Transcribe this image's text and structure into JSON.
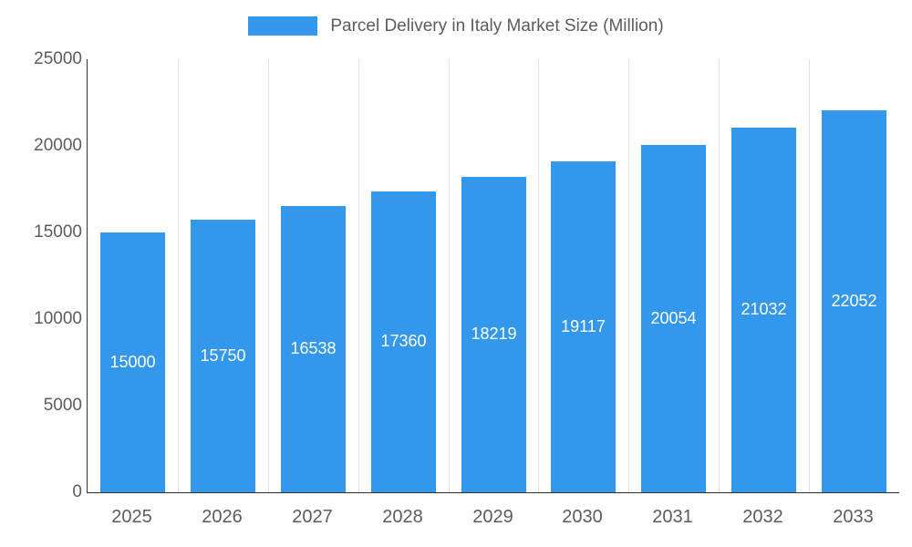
{
  "chart_data": {
    "type": "bar",
    "title": "Parcel Delivery in Italy Market Size (Million)",
    "series_name": "Parcel Delivery in Italy Market Size (Million)",
    "categories": [
      "2025",
      "2026",
      "2027",
      "2028",
      "2029",
      "2030",
      "2031",
      "2032",
      "2033"
    ],
    "values": [
      15000,
      15750,
      16538,
      17360,
      18219,
      19117,
      20054,
      21032,
      22052
    ],
    "value_labels": [
      "15000",
      "15750",
      "16538",
      "17360",
      "18219",
      "19117",
      "20054",
      "21032",
      "22052"
    ],
    "xlabel": "",
    "ylabel": "",
    "ylim": [
      0,
      25000
    ],
    "yticks": [
      0,
      5000,
      10000,
      15000,
      20000,
      25000
    ],
    "grid": "vertical-only",
    "legend_position": "top",
    "colors": {
      "bar": "#3398EC",
      "bar_label_text": "#ffffff",
      "axis_text": "#5c5c5c",
      "axis_line": "#333333",
      "gridline": "#e3e3e3",
      "background": "#ffffff"
    }
  }
}
